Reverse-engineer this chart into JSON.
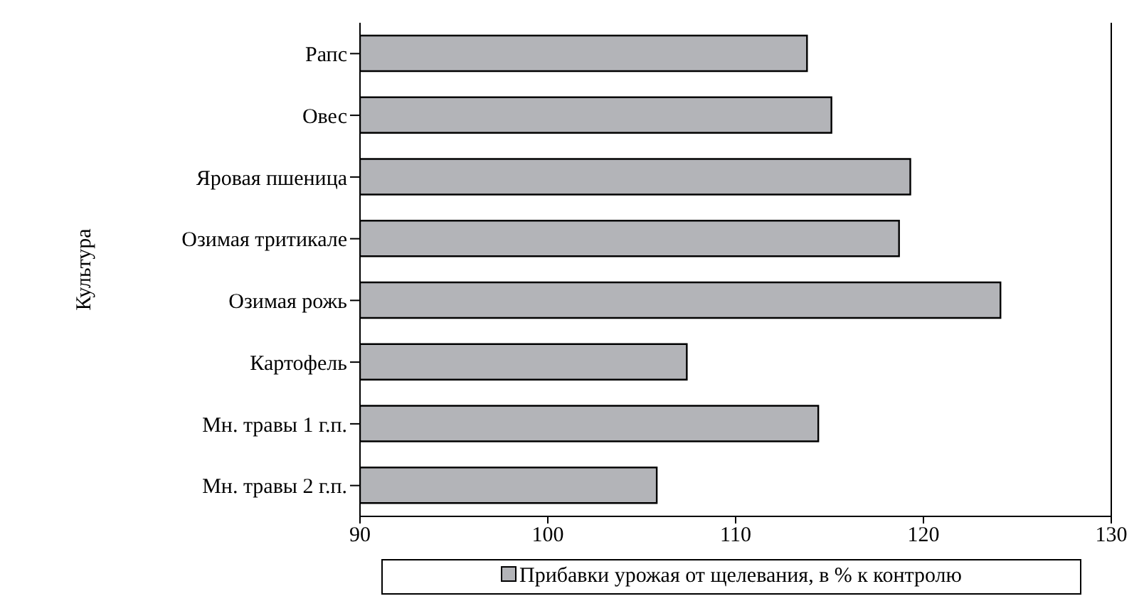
{
  "chart_data": {
    "type": "bar",
    "orientation": "horizontal",
    "ylabel": "Культура",
    "categories": [
      "Рапс",
      "Овес",
      "Яровая пшеница",
      "Озимая тритикале",
      "Озимая рожь",
      "Картофель",
      "Мн. травы 1 г.п.",
      "Мн. травы 2 г.п."
    ],
    "series": [
      {
        "name": "Прибавки урожая от щелевания, в % к контролю",
        "color": "#b3b4b8",
        "values": [
          113.8,
          115.1,
          119.3,
          118.7,
          124.1,
          107.4,
          114.4,
          105.8
        ]
      }
    ],
    "xlim": [
      90,
      130
    ],
    "xticks": [
      90,
      100,
      110,
      120,
      130
    ],
    "grid": false,
    "legend": "bottom"
  }
}
